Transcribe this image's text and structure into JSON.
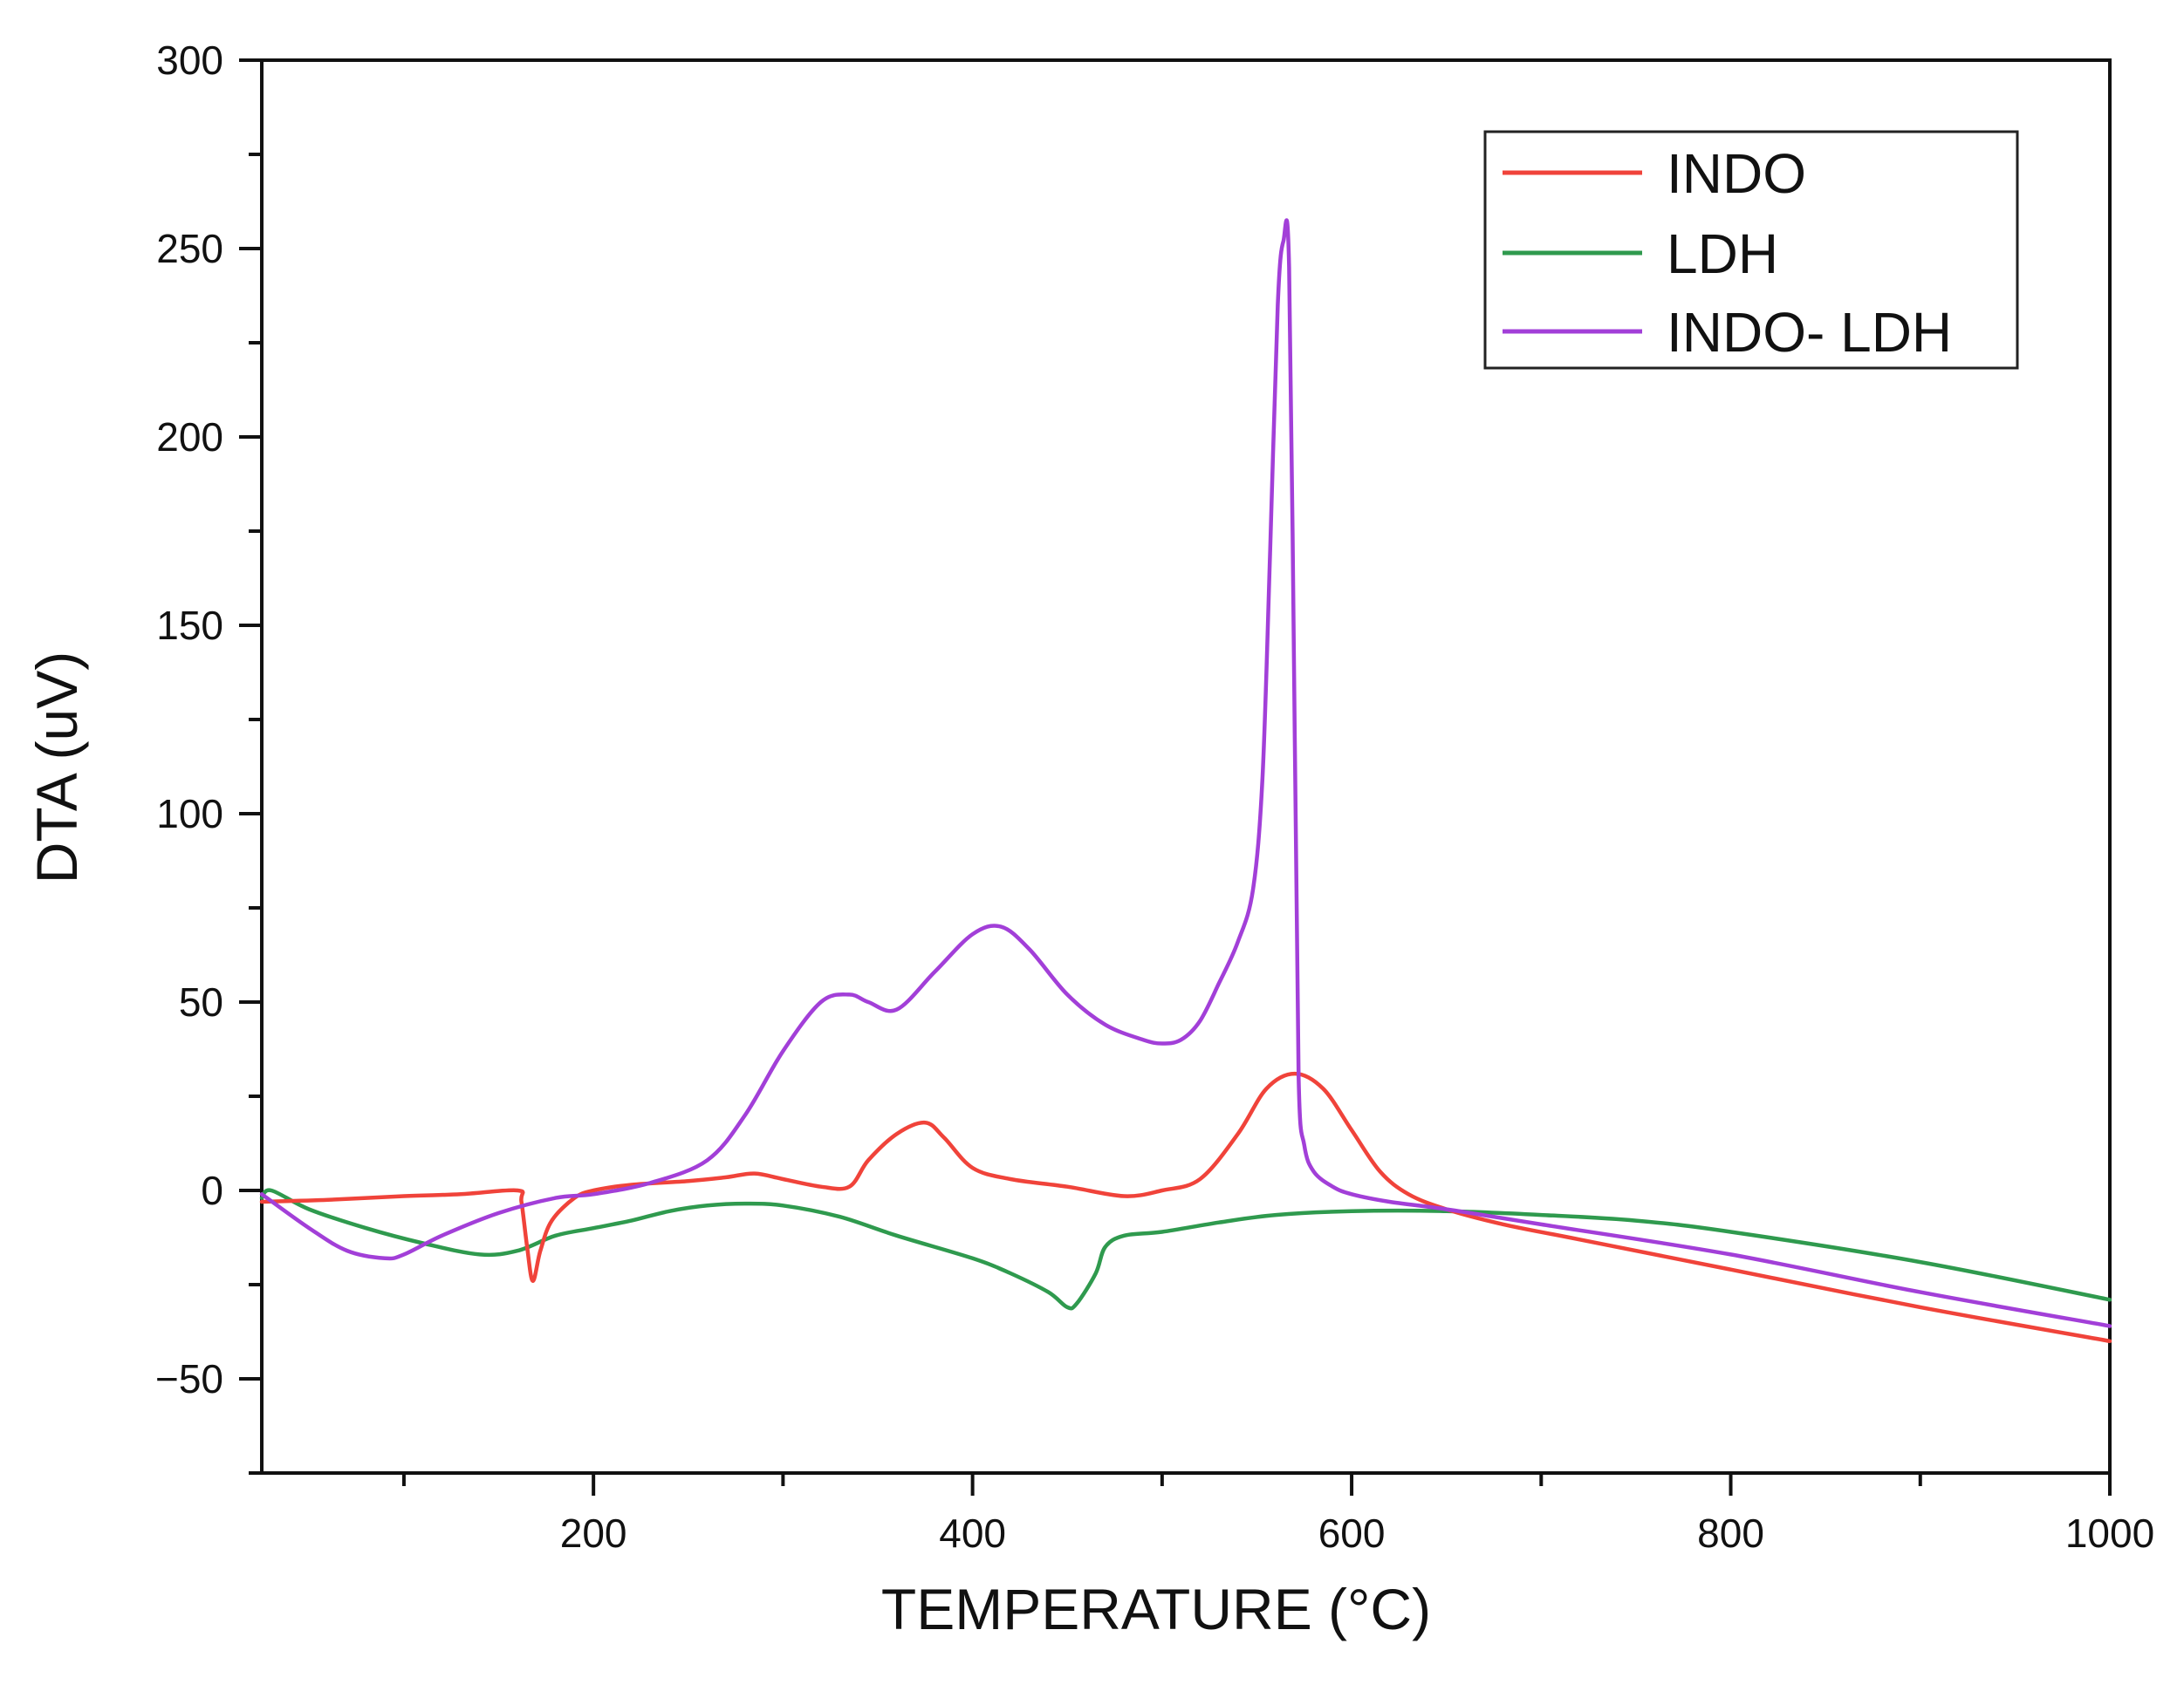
{
  "chart_data": {
    "type": "line",
    "title": "",
    "xlabel": "TEMPERATURE (°C)",
    "ylabel": "DTA (uV)",
    "xlim": [
      25,
      1000
    ],
    "ylim": [
      -75,
      300
    ],
    "x_ticks": [
      200,
      400,
      600,
      800,
      1000
    ],
    "x_tick_labels": [
      "200",
      "400",
      "600",
      "800",
      "1000"
    ],
    "y_ticks": [
      -50,
      0,
      50,
      100,
      150,
      200,
      250,
      300
    ],
    "y_tick_labels": [
      "−50",
      "0",
      "50",
      "100",
      "150",
      "200",
      "250",
      "300"
    ],
    "grid": false,
    "legend_position": "top-right",
    "series": [
      {
        "name": "INDO",
        "color": "#f0433a",
        "x": [
          25,
          60,
          100,
          130,
          160,
          162,
          165,
          168,
          172,
          178,
          190,
          200,
          220,
          250,
          270,
          285,
          300,
          320,
          335,
          345,
          360,
          375,
          385,
          400,
          420,
          450,
          480,
          500,
          520,
          540,
          555,
          570,
          585,
          600,
          615,
          630,
          650,
          680,
          720,
          800,
          900,
          1000
        ],
        "y": [
          -3,
          -2.5,
          -1.5,
          -1,
          0,
          -3,
          -15,
          -24,
          -16,
          -8,
          -2,
          0,
          1.5,
          2.5,
          3.5,
          4.5,
          3,
          1,
          1,
          8,
          15,
          18,
          14,
          6,
          3,
          1,
          -1.5,
          0,
          3,
          15,
          27,
          31,
          27,
          16,
          5,
          -1,
          -5,
          -9,
          -13,
          -21,
          -31,
          -40
        ]
      },
      {
        "name": "LDH",
        "color": "#2f9a4e",
        "x": [
          25,
          30,
          50,
          80,
          110,
          140,
          160,
          180,
          200,
          220,
          240,
          260,
          280,
          300,
          330,
          360,
          400,
          420,
          440,
          450,
          455,
          465,
          470,
          480,
          500,
          530,
          560,
          600,
          650,
          700,
          750,
          800,
          900,
          1000
        ],
        "y": [
          -2,
          0,
          -5,
          -10,
          -14,
          -17,
          -16,
          -12,
          -10,
          -8,
          -5.5,
          -4,
          -3.5,
          -4,
          -7,
          -12,
          -18,
          -22,
          -27,
          -31,
          -30,
          -22,
          -15,
          -12,
          -11,
          -8.5,
          -6.5,
          -5.5,
          -5.5,
          -6.5,
          -8,
          -11,
          -19,
          -29
        ]
      },
      {
        "name": "INDO- LDH",
        "color": "#a23fd8",
        "x": [
          25,
          50,
          70,
          90,
          100,
          120,
          150,
          180,
          200,
          230,
          260,
          280,
          300,
          320,
          335,
          345,
          360,
          380,
          400,
          415,
          430,
          450,
          470,
          490,
          500,
          510,
          520,
          530,
          540,
          548,
          553,
          557,
          561,
          564,
          567,
          570,
          572,
          575,
          580,
          590,
          600,
          620,
          650,
          700,
          800,
          900,
          1000
        ],
        "y": [
          -1,
          -10,
          -16,
          -18,
          -17,
          -12,
          -6,
          -2,
          -1,
          2,
          8,
          20,
          37,
          50,
          52,
          50,
          48,
          58,
          68,
          70,
          64,
          52,
          44,
          40,
          39,
          40,
          45,
          55,
          66,
          80,
          110,
          170,
          235,
          252,
          245,
          120,
          30,
          12,
          5,
          1,
          -1,
          -3,
          -5,
          -9,
          -17,
          -27,
          -36
        ]
      }
    ]
  }
}
